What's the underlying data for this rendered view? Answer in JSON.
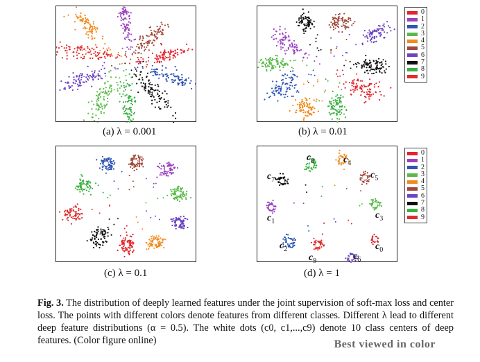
{
  "colors": [
    "#e4232b",
    "#9b40c0",
    "#2f55b5",
    "#5ab94a",
    "#f18a1d",
    "#a0483a",
    "#6b43c1",
    "#111111",
    "#3cb043",
    "#e02d2d"
  ],
  "legend_labels": [
    "0",
    "1",
    "2",
    "3",
    "4",
    "5",
    "6",
    "7",
    "8",
    "9"
  ],
  "panels": [
    {
      "caption": "(a) λ = 0.001"
    },
    {
      "caption": "(b) λ = 0.01"
    },
    {
      "caption": "(c) λ = 0.1"
    },
    {
      "caption": "(d) λ = 1"
    }
  ],
  "center_labels": {
    "c8": "c",
    "c4": "c",
    "c7": "c",
    "c5": "c",
    "c1": "c",
    "c3": "c",
    "c2": "c",
    "c0": "c",
    "c9": "c",
    "c6": "c",
    "s8": "8",
    "s4": "4",
    "s7": "7",
    "s5": "5",
    "s1": "1",
    "s3": "3",
    "s2": "2",
    "s0": "0",
    "s9": "9",
    "s6": "6"
  },
  "figure_text": {
    "label": "Fig. 3.",
    "body": " The distribution of deeply learned features under the joint supervision of soft-max loss and center loss. The points with different colors denote features from different classes. Different λ lead to different deep feature distributions (α = 0.5). The white dots (c0, c1,...,c9) denote 10 class centers of deep features. ",
    "tail": "(Color figure online)"
  },
  "watermark": "Best viewed in color"
}
